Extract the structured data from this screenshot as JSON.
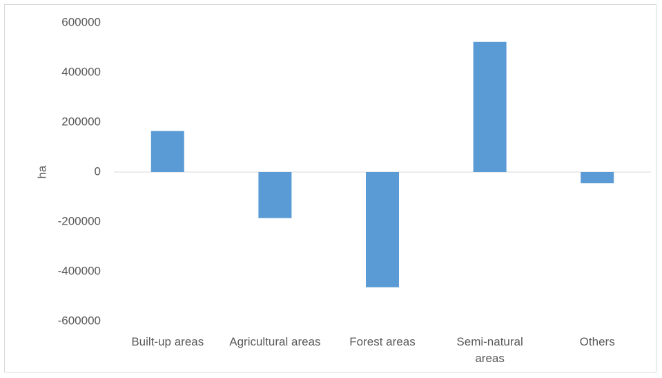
{
  "chart_data": {
    "type": "bar",
    "categories": [
      "Built-up areas",
      "Agricultural areas",
      "Forest areas",
      "Semi-natural areas",
      "Others"
    ],
    "category_lines": [
      [
        "Built-up areas"
      ],
      [
        "Agricultural areas"
      ],
      [
        "Forest areas"
      ],
      [
        "Semi-natural",
        "areas"
      ],
      [
        "Others"
      ]
    ],
    "series": [
      {
        "values": [
          165000,
          -185000,
          -463000,
          523000,
          -45000
        ]
      }
    ],
    "xlabel": "",
    "ylabel": "ha",
    "ylim": [
      -600000,
      600000
    ],
    "yticks": [
      "600000",
      "400000",
      "200000",
      "0",
      "-200000",
      "-400000",
      "-600000"
    ],
    "grid": false,
    "legend": "none",
    "bar_color": "#5b9bd5",
    "zero_line_color": "#d9d9d9"
  }
}
